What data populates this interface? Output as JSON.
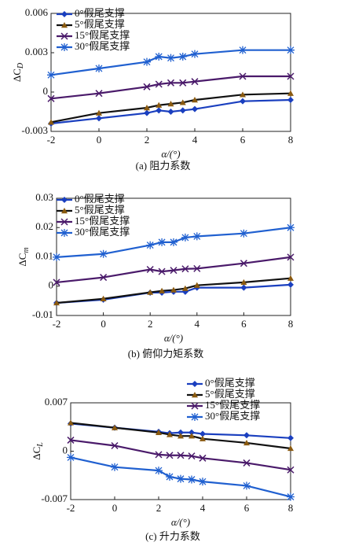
{
  "chart_data": [
    {
      "type": "line",
      "y_label": "ΔC",
      "y_label_sub": "D",
      "x_label": "α/(°)",
      "caption": "(a) 阻力系数",
      "x": [
        -2,
        0,
        2,
        2.5,
        3,
        3.5,
        4,
        6,
        8
      ],
      "xlim": [
        -2,
        8
      ],
      "xticks": [
        -2,
        0,
        2,
        4,
        6,
        8
      ],
      "ylim": [
        -0.003,
        0.006
      ],
      "yticks": [
        -0.003,
        0,
        0.003,
        0.006
      ],
      "legend": "upper left",
      "series": [
        {
          "name": "0°假尾支撑",
          "color": "#1a3fbf",
          "marker": "diamond",
          "values": [
            -0.0024,
            -0.002,
            -0.0016,
            -0.0014,
            -0.0015,
            -0.0014,
            -0.0013,
            -0.0007,
            -0.0006
          ]
        },
        {
          "name": "5°假尾支撑",
          "color": "#2b2510",
          "marker": "triangle",
          "values": [
            -0.0023,
            -0.0016,
            -0.0012,
            -0.001,
            -0.0009,
            -0.0008,
            -0.0006,
            -0.0002,
            -0.0001
          ]
        },
        {
          "name": "15°假尾支撑",
          "color": "#4a1a6a",
          "marker": "x",
          "values": [
            -0.0005,
            -0.0001,
            0.0004,
            0.0006,
            0.0007,
            0.0007,
            0.0008,
            0.0012,
            0.0012
          ]
        },
        {
          "name": "30°假尾支撑",
          "color": "#2060d0",
          "marker": "asterisk",
          "values": [
            0.0013,
            0.0018,
            0.0023,
            0.0027,
            0.0026,
            0.0027,
            0.0029,
            0.0032,
            0.0032
          ]
        }
      ]
    },
    {
      "type": "line",
      "y_label": "ΔC",
      "y_label_sub": "m",
      "x_label": "α/(°)",
      "caption": "(b) 俯仰力矩系数",
      "x": [
        -2,
        0,
        2,
        2.5,
        3,
        3.5,
        4,
        6,
        8
      ],
      "xlim": [
        -2,
        8
      ],
      "xticks": [
        -2,
        0,
        2,
        4,
        6,
        8
      ],
      "ylim": [
        -0.01,
        0.03
      ],
      "yticks": [
        -0.01,
        0,
        0.01,
        0.02,
        0.03
      ],
      "legend": "upper left",
      "series": [
        {
          "name": "0°假尾支撑",
          "color": "#1a3fbf",
          "marker": "diamond",
          "values": [
            -0.0057,
            -0.0046,
            -0.0022,
            -0.0022,
            -0.0019,
            -0.0019,
            -0.0005,
            -0.0005,
            0.0005
          ]
        },
        {
          "name": "5°假尾支撑",
          "color": "#2b2510",
          "marker": "triangle",
          "values": [
            -0.0057,
            -0.0043,
            -0.0021,
            -0.0016,
            -0.0013,
            -0.0008,
            0.0003,
            0.0013,
            0.0027
          ]
        },
        {
          "name": "15°假尾支撑",
          "color": "#4a1a6a",
          "marker": "x",
          "values": [
            0.0013,
            0.003,
            0.0057,
            0.005,
            0.0054,
            0.0059,
            0.006,
            0.0078,
            0.0099
          ]
        },
        {
          "name": "30°假尾支撑",
          "color": "#2060d0",
          "marker": "asterisk",
          "values": [
            0.0099,
            0.011,
            0.014,
            0.015,
            0.015,
            0.0166,
            0.017,
            0.018,
            0.02
          ]
        }
      ]
    },
    {
      "type": "line",
      "y_label": "ΔC",
      "y_label_sub": "L",
      "x_label": "α/(°)",
      "caption": "(c) 升力系数",
      "x": [
        -2,
        0,
        2,
        2.5,
        3,
        3.5,
        4,
        6,
        8
      ],
      "xlim": [
        -2,
        8
      ],
      "xticks": [
        -2,
        0,
        2,
        4,
        6,
        8
      ],
      "ylim": [
        -0.007,
        0.007
      ],
      "yticks": [
        -0.007,
        0,
        0.007
      ],
      "legend": "above right",
      "series": [
        {
          "name": "0°假尾支撑",
          "color": "#1a3fbf",
          "marker": "diamond",
          "values": [
            0.004,
            0.0034,
            0.0028,
            0.0026,
            0.0027,
            0.0027,
            0.0025,
            0.0023,
            0.0019
          ]
        },
        {
          "name": "5°假尾支撑",
          "color": "#2b2510",
          "marker": "triangle",
          "values": [
            0.0041,
            0.0034,
            0.0027,
            0.0024,
            0.0022,
            0.0022,
            0.0018,
            0.0012,
            0.0004
          ]
        },
        {
          "name": "15°假尾支撑",
          "color": "#4a1a6a",
          "marker": "x",
          "values": [
            0.0016,
            0.0008,
            -0.0005,
            -0.0006,
            -0.0006,
            -0.0007,
            -0.001,
            -0.0017,
            -0.0027
          ]
        },
        {
          "name": "30°假尾支撑",
          "color": "#2060d0",
          "marker": "asterisk",
          "values": [
            -0.0009,
            -0.0023,
            -0.0028,
            -0.0037,
            -0.004,
            -0.0041,
            -0.0044,
            -0.005,
            -0.0066
          ]
        }
      ]
    }
  ]
}
